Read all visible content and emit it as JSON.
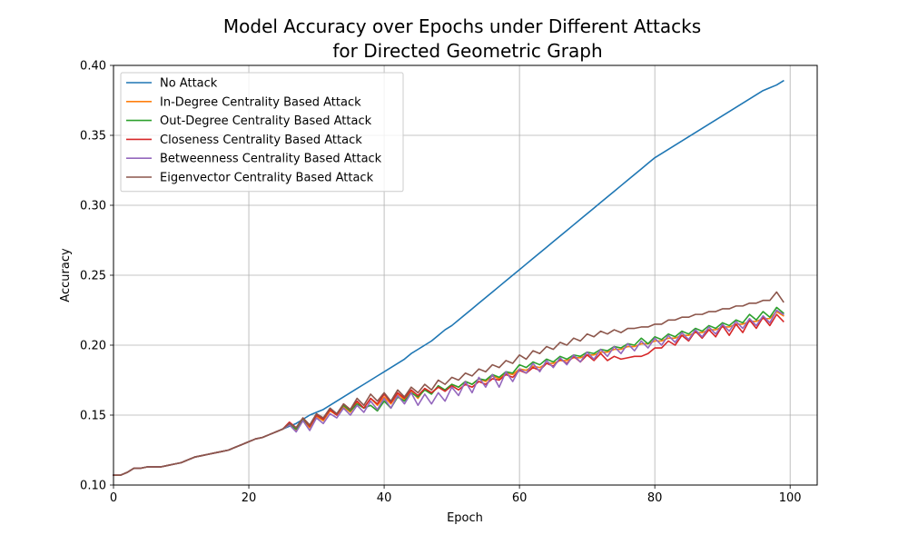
{
  "chart_data": {
    "type": "line",
    "title_line1": "Model Accuracy over Epochs under Different Attacks",
    "title_line2": "for Directed Geometric Graph",
    "xlabel": "Epoch",
    "ylabel": "Accuracy",
    "xlim": [
      0,
      104
    ],
    "ylim": [
      0.1,
      0.4
    ],
    "xticks": [
      0,
      20,
      40,
      60,
      80,
      100
    ],
    "yticks": [
      0.1,
      0.15,
      0.2,
      0.25,
      0.3,
      0.35,
      0.4
    ],
    "xtick_labels": [
      "0",
      "20",
      "40",
      "60",
      "80",
      "100"
    ],
    "ytick_labels": [
      "0.10",
      "0.15",
      "0.20",
      "0.25",
      "0.30",
      "0.35",
      "0.40"
    ],
    "grid": true,
    "legend_position": "upper-left",
    "series": [
      {
        "name": "No Attack",
        "color": "#1f77b4",
        "values": [
          0.107,
          0.107,
          0.109,
          0.112,
          0.112,
          0.113,
          0.113,
          0.113,
          0.114,
          0.115,
          0.116,
          0.118,
          0.12,
          0.121,
          0.122,
          0.123,
          0.124,
          0.125,
          0.127,
          0.129,
          0.131,
          0.133,
          0.134,
          0.136,
          0.138,
          0.14,
          0.142,
          0.144,
          0.147,
          0.15,
          0.152,
          0.154,
          0.157,
          0.16,
          0.163,
          0.166,
          0.169,
          0.172,
          0.175,
          0.178,
          0.181,
          0.184,
          0.187,
          0.19,
          0.194,
          0.197,
          0.2,
          0.203,
          0.207,
          0.211,
          0.214,
          0.218,
          0.222,
          0.226,
          0.23,
          0.234,
          0.238,
          0.242,
          0.246,
          0.25,
          0.254,
          0.258,
          0.262,
          0.266,
          0.27,
          0.274,
          0.278,
          0.282,
          0.286,
          0.29,
          0.294,
          0.298,
          0.302,
          0.306,
          0.31,
          0.314,
          0.318,
          0.322,
          0.326,
          0.33,
          0.334,
          0.337,
          0.34,
          0.343,
          0.346,
          0.349,
          0.352,
          0.355,
          0.358,
          0.361,
          0.364,
          0.367,
          0.37,
          0.373,
          0.376,
          0.379,
          0.382,
          0.384,
          0.386,
          0.389
        ]
      },
      {
        "name": "In-Degree Centrality Based Attack",
        "color": "#ff7f0e",
        "values": [
          0.107,
          0.107,
          0.109,
          0.112,
          0.112,
          0.113,
          0.113,
          0.113,
          0.114,
          0.115,
          0.116,
          0.118,
          0.12,
          0.121,
          0.122,
          0.123,
          0.124,
          0.125,
          0.127,
          0.129,
          0.131,
          0.133,
          0.134,
          0.136,
          0.138,
          0.14,
          0.143,
          0.139,
          0.146,
          0.141,
          0.149,
          0.146,
          0.153,
          0.15,
          0.156,
          0.152,
          0.159,
          0.155,
          0.162,
          0.157,
          0.163,
          0.158,
          0.165,
          0.161,
          0.167,
          0.162,
          0.169,
          0.166,
          0.17,
          0.168,
          0.172,
          0.17,
          0.174,
          0.172,
          0.176,
          0.174,
          0.178,
          0.176,
          0.18,
          0.179,
          0.183,
          0.182,
          0.185,
          0.184,
          0.187,
          0.187,
          0.189,
          0.189,
          0.191,
          0.191,
          0.193,
          0.193,
          0.195,
          0.195,
          0.197,
          0.197,
          0.199,
          0.199,
          0.201,
          0.201,
          0.203,
          0.203,
          0.205,
          0.205,
          0.207,
          0.207,
          0.209,
          0.209,
          0.211,
          0.211,
          0.213,
          0.213,
          0.215,
          0.215,
          0.217,
          0.217,
          0.219,
          0.219,
          0.224,
          0.221
        ]
      },
      {
        "name": "Out-Degree Centrality Based Attack",
        "color": "#2ca02c",
        "values": [
          0.107,
          0.107,
          0.109,
          0.112,
          0.112,
          0.113,
          0.113,
          0.113,
          0.114,
          0.115,
          0.116,
          0.118,
          0.12,
          0.121,
          0.122,
          0.123,
          0.124,
          0.125,
          0.127,
          0.129,
          0.131,
          0.133,
          0.134,
          0.136,
          0.138,
          0.14,
          0.143,
          0.14,
          0.147,
          0.142,
          0.15,
          0.147,
          0.154,
          0.151,
          0.157,
          0.153,
          0.158,
          0.155,
          0.157,
          0.153,
          0.16,
          0.155,
          0.163,
          0.16,
          0.166,
          0.163,
          0.168,
          0.165,
          0.171,
          0.168,
          0.172,
          0.17,
          0.174,
          0.172,
          0.176,
          0.175,
          0.179,
          0.177,
          0.181,
          0.18,
          0.186,
          0.184,
          0.188,
          0.186,
          0.19,
          0.188,
          0.192,
          0.19,
          0.193,
          0.192,
          0.195,
          0.194,
          0.197,
          0.196,
          0.199,
          0.198,
          0.201,
          0.2,
          0.205,
          0.201,
          0.206,
          0.204,
          0.208,
          0.206,
          0.21,
          0.208,
          0.212,
          0.21,
          0.214,
          0.212,
          0.216,
          0.214,
          0.218,
          0.216,
          0.222,
          0.218,
          0.224,
          0.22,
          0.227,
          0.223
        ]
      },
      {
        "name": "Closeness Centrality Based Attack",
        "color": "#d62728",
        "values": [
          0.107,
          0.107,
          0.109,
          0.112,
          0.112,
          0.113,
          0.113,
          0.113,
          0.114,
          0.115,
          0.116,
          0.118,
          0.12,
          0.121,
          0.122,
          0.123,
          0.124,
          0.125,
          0.127,
          0.129,
          0.131,
          0.133,
          0.134,
          0.136,
          0.138,
          0.14,
          0.145,
          0.141,
          0.148,
          0.142,
          0.15,
          0.147,
          0.154,
          0.15,
          0.158,
          0.154,
          0.16,
          0.155,
          0.162,
          0.158,
          0.165,
          0.159,
          0.166,
          0.162,
          0.168,
          0.164,
          0.169,
          0.166,
          0.17,
          0.167,
          0.171,
          0.168,
          0.172,
          0.17,
          0.174,
          0.172,
          0.176,
          0.175,
          0.179,
          0.177,
          0.182,
          0.18,
          0.184,
          0.182,
          0.187,
          0.185,
          0.19,
          0.187,
          0.192,
          0.188,
          0.193,
          0.189,
          0.194,
          0.189,
          0.192,
          0.19,
          0.191,
          0.192,
          0.192,
          0.194,
          0.198,
          0.198,
          0.203,
          0.2,
          0.207,
          0.203,
          0.21,
          0.205,
          0.211,
          0.206,
          0.214,
          0.207,
          0.215,
          0.209,
          0.218,
          0.212,
          0.22,
          0.214,
          0.222,
          0.217
        ]
      },
      {
        "name": "Betweenness Centrality Based Attack",
        "color": "#9467bd",
        "values": [
          0.107,
          0.107,
          0.109,
          0.112,
          0.112,
          0.113,
          0.113,
          0.113,
          0.114,
          0.115,
          0.116,
          0.118,
          0.12,
          0.121,
          0.122,
          0.123,
          0.124,
          0.125,
          0.127,
          0.129,
          0.131,
          0.133,
          0.134,
          0.136,
          0.138,
          0.14,
          0.143,
          0.138,
          0.146,
          0.139,
          0.148,
          0.144,
          0.151,
          0.148,
          0.155,
          0.15,
          0.157,
          0.152,
          0.16,
          0.154,
          0.162,
          0.155,
          0.164,
          0.158,
          0.166,
          0.157,
          0.165,
          0.158,
          0.166,
          0.16,
          0.17,
          0.164,
          0.174,
          0.166,
          0.177,
          0.17,
          0.179,
          0.17,
          0.181,
          0.174,
          0.183,
          0.18,
          0.187,
          0.181,
          0.189,
          0.184,
          0.191,
          0.186,
          0.193,
          0.188,
          0.195,
          0.19,
          0.197,
          0.192,
          0.199,
          0.194,
          0.201,
          0.196,
          0.203,
          0.198,
          0.205,
          0.2,
          0.207,
          0.202,
          0.209,
          0.204,
          0.211,
          0.206,
          0.213,
          0.208,
          0.215,
          0.21,
          0.217,
          0.212,
          0.219,
          0.214,
          0.221,
          0.216,
          0.225,
          0.222
        ]
      },
      {
        "name": "Eigenvector Centrality Based Attack",
        "color": "#8c564b",
        "values": [
          0.107,
          0.107,
          0.109,
          0.112,
          0.112,
          0.113,
          0.113,
          0.113,
          0.114,
          0.115,
          0.116,
          0.118,
          0.12,
          0.121,
          0.122,
          0.123,
          0.124,
          0.125,
          0.127,
          0.129,
          0.131,
          0.133,
          0.134,
          0.136,
          0.138,
          0.14,
          0.144,
          0.141,
          0.148,
          0.143,
          0.151,
          0.148,
          0.155,
          0.151,
          0.158,
          0.154,
          0.162,
          0.157,
          0.165,
          0.16,
          0.166,
          0.16,
          0.168,
          0.163,
          0.17,
          0.166,
          0.172,
          0.168,
          0.175,
          0.172,
          0.177,
          0.175,
          0.18,
          0.178,
          0.183,
          0.181,
          0.186,
          0.184,
          0.189,
          0.187,
          0.193,
          0.19,
          0.196,
          0.194,
          0.199,
          0.197,
          0.202,
          0.2,
          0.205,
          0.203,
          0.208,
          0.206,
          0.21,
          0.208,
          0.211,
          0.209,
          0.212,
          0.212,
          0.213,
          0.213,
          0.215,
          0.215,
          0.218,
          0.218,
          0.22,
          0.22,
          0.222,
          0.222,
          0.224,
          0.224,
          0.226,
          0.226,
          0.228,
          0.228,
          0.23,
          0.23,
          0.232,
          0.232,
          0.238,
          0.231
        ]
      }
    ]
  }
}
